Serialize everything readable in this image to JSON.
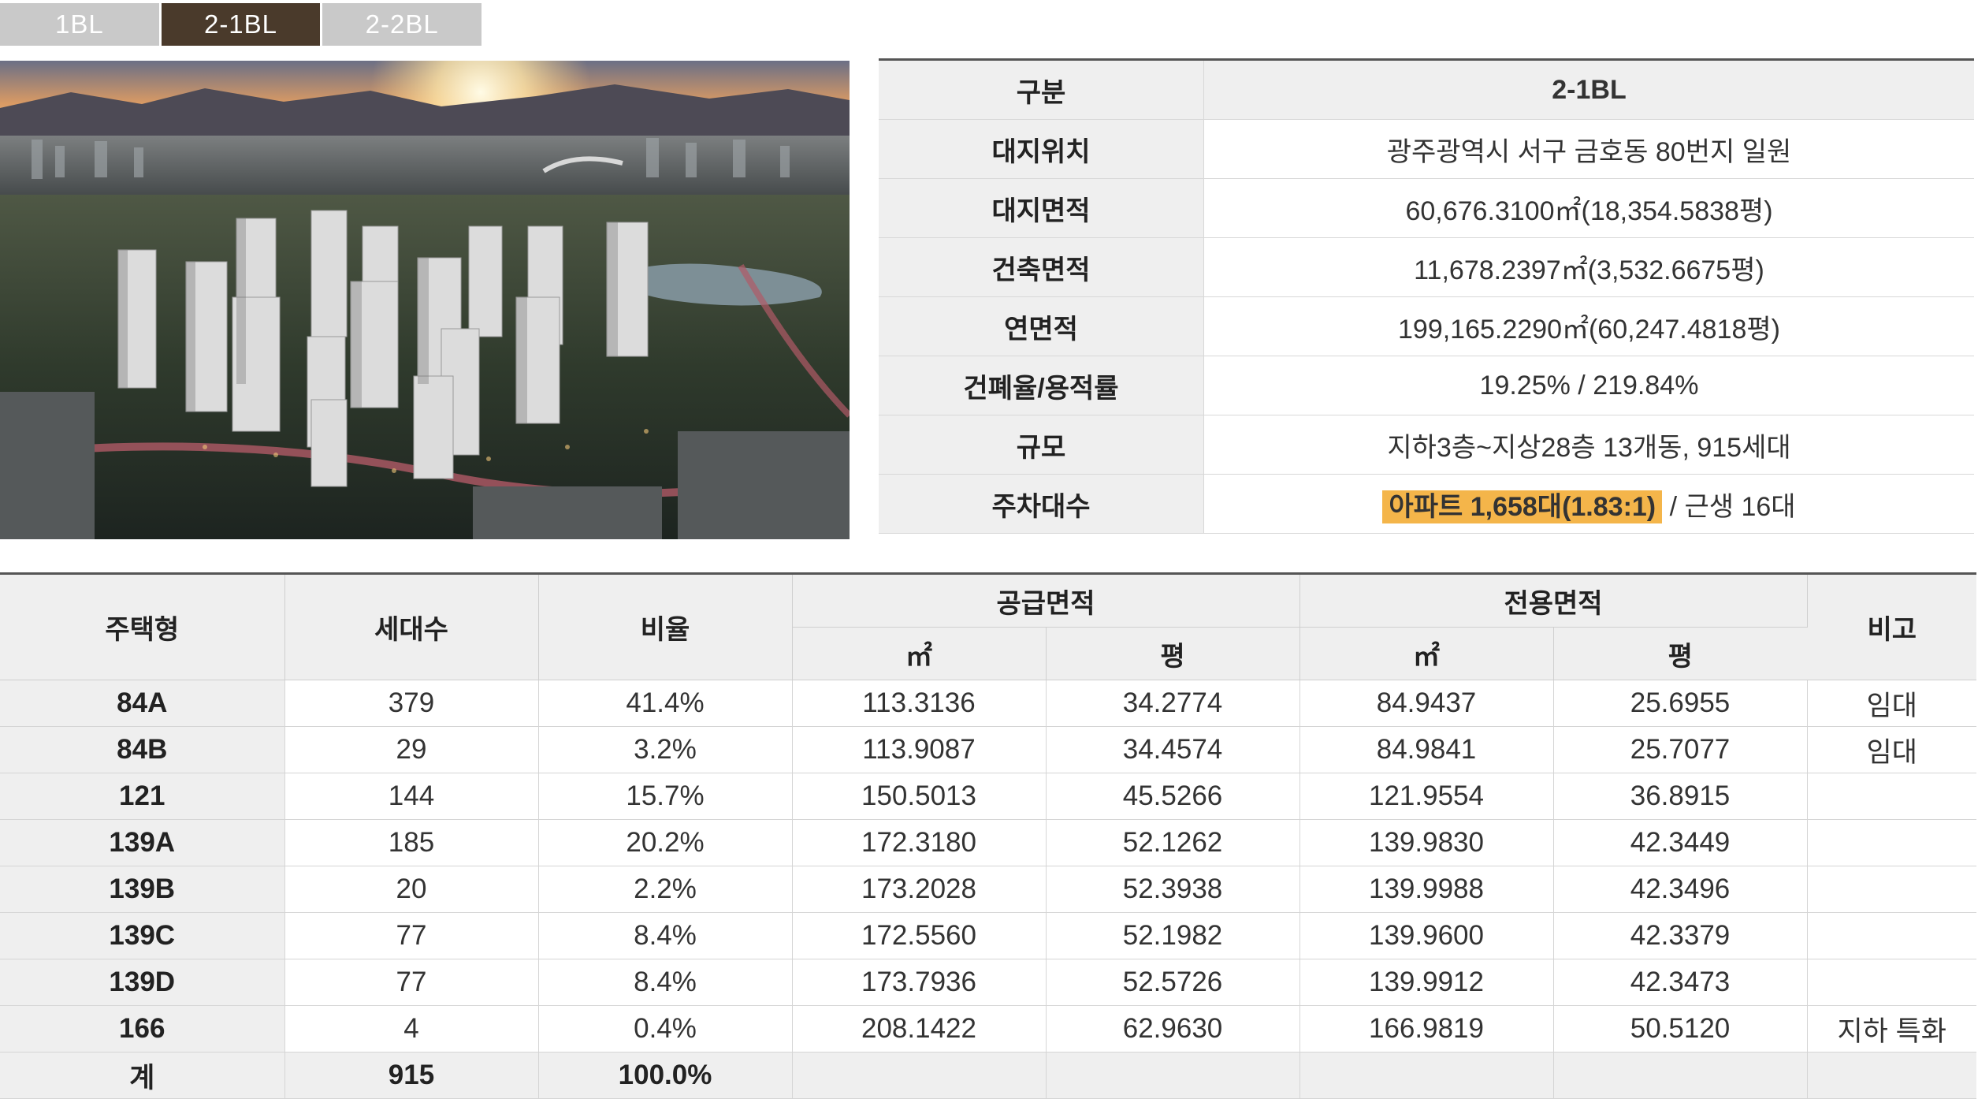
{
  "tabs": [
    {
      "label": "1BL",
      "active": false
    },
    {
      "label": "2-1BL",
      "active": true
    },
    {
      "label": "2-2BL",
      "active": false
    }
  ],
  "colors": {
    "tab_active": "#4a3a2b",
    "tab_inactive": "#c9c9c9",
    "highlight": "#f4b54a",
    "header_bg": "#efefef"
  },
  "info": {
    "rows": [
      {
        "label": "구분",
        "value": "2-1BL"
      },
      {
        "label": "대지위치",
        "value": "광주광역시 서구 금호동 80번지 일원"
      },
      {
        "label": "대지면적",
        "value": "60,676.3100㎡(18,354.5838평)"
      },
      {
        "label": "건축면적",
        "value": "11,678.2397㎡(3,532.6675평)"
      },
      {
        "label": "연면적",
        "value": "199,165.2290㎡(60,247.4818평)"
      },
      {
        "label": "건폐율/용적률",
        "value": "19.25% / 219.84%"
      },
      {
        "label": "규모",
        "value": "지하3층~지상28층 13개동, 915세대"
      }
    ],
    "parking": {
      "label": "주차대수",
      "highlight": "아파트 1,658대(1.83:1)",
      "rest": " / 근생 16대"
    }
  },
  "units": {
    "headers": {
      "type": "주택형",
      "households": "세대수",
      "ratio": "비율",
      "supply": "공급면적",
      "exclusive": "전용면적",
      "note": "비고",
      "m2": "㎡",
      "pyeong": "평"
    },
    "rows": [
      {
        "type": "84A",
        "households": "379",
        "ratio": "41.4%",
        "supply_m2": "113.3136",
        "supply_py": "34.2774",
        "excl_m2": "84.9437",
        "excl_py": "25.6955",
        "note": "임대"
      },
      {
        "type": "84B",
        "households": "29",
        "ratio": "3.2%",
        "supply_m2": "113.9087",
        "supply_py": "34.4574",
        "excl_m2": "84.9841",
        "excl_py": "25.7077",
        "note": "임대"
      },
      {
        "type": "121",
        "households": "144",
        "ratio": "15.7%",
        "supply_m2": "150.5013",
        "supply_py": "45.5266",
        "excl_m2": "121.9554",
        "excl_py": "36.8915",
        "note": ""
      },
      {
        "type": "139A",
        "households": "185",
        "ratio": "20.2%",
        "supply_m2": "172.3180",
        "supply_py": "52.1262",
        "excl_m2": "139.9830",
        "excl_py": "42.3449",
        "note": ""
      },
      {
        "type": "139B",
        "households": "20",
        "ratio": "2.2%",
        "supply_m2": "173.2028",
        "supply_py": "52.3938",
        "excl_m2": "139.9988",
        "excl_py": "42.3496",
        "note": ""
      },
      {
        "type": "139C",
        "households": "77",
        "ratio": "8.4%",
        "supply_m2": "172.5560",
        "supply_py": "52.1982",
        "excl_m2": "139.9600",
        "excl_py": "42.3379",
        "note": ""
      },
      {
        "type": "139D",
        "households": "77",
        "ratio": "8.4%",
        "supply_m2": "173.7936",
        "supply_py": "52.5726",
        "excl_m2": "139.9912",
        "excl_py": "42.3473",
        "note": ""
      },
      {
        "type": "166",
        "households": "4",
        "ratio": "0.4%",
        "supply_m2": "208.1422",
        "supply_py": "62.9630",
        "excl_m2": "166.9819",
        "excl_py": "50.5120",
        "note": "지하 특화"
      }
    ],
    "total": {
      "type": "계",
      "households": "915",
      "ratio": "100.0%"
    }
  }
}
